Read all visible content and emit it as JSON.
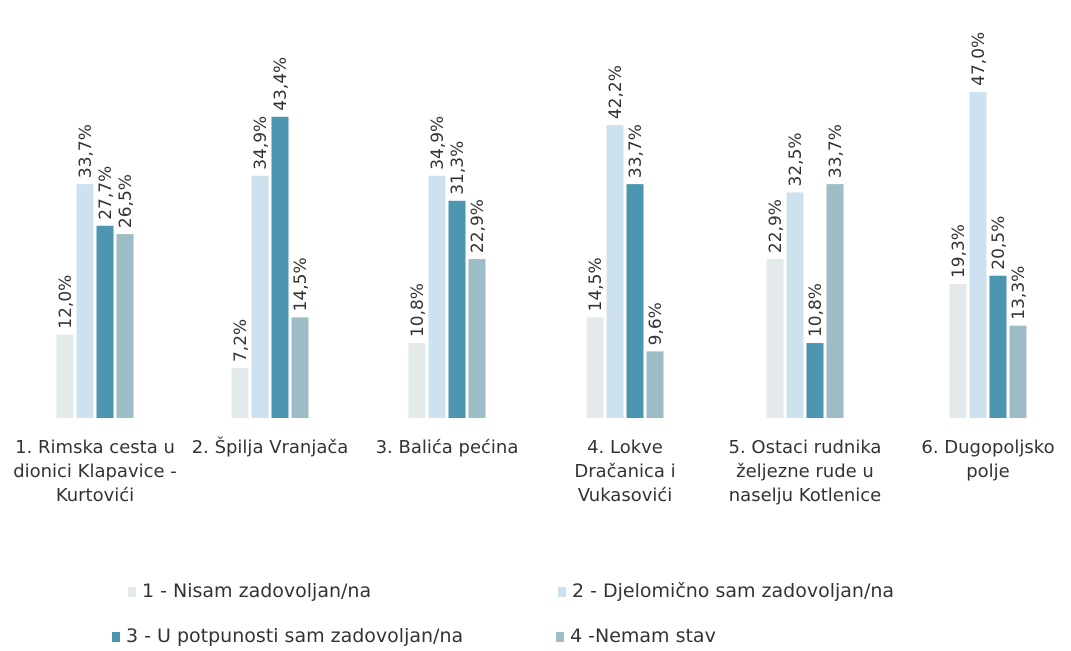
{
  "chart_data": {
    "type": "bar",
    "categories": [
      "1. Rimska cesta u dionici Klapavice - Kurtovići",
      "2. Špilja Vranjača",
      "3. Balića pećina",
      "4. Lokve Dračanica i Vukasovići",
      "5. Ostaci rudnika željezne rude u naselju Kotlenice",
      "6. Dugopoljsko polje"
    ],
    "series": [
      {
        "name": "1 - Nisam zadovoljan/na",
        "color": "#e4e9ec",
        "values": [
          12.0,
          7.2,
          10.8,
          14.5,
          22.9,
          19.3
        ],
        "value_labels": [
          "12,0%",
          "7,2%",
          "10,8%",
          "14,5%",
          "22,9%",
          "19,3%"
        ]
      },
      {
        "name": "2 - Djelomično sam zadovoljan/na",
        "color": "#cde1ee",
        "values": [
          33.7,
          34.9,
          34.9,
          42.2,
          32.5,
          47.0
        ],
        "value_labels": [
          "33,7%",
          "34,9%",
          "34,9%",
          "42,2%",
          "32,5%",
          "47,0%"
        ]
      },
      {
        "name": "3 - U potpunosti sam zadovoljan/na",
        "color": "#4d96b2",
        "values": [
          27.7,
          43.4,
          31.3,
          33.7,
          10.8,
          20.5
        ],
        "value_labels": [
          "27,7%",
          "43,4%",
          "31,3%",
          "33,7%",
          "10,8%",
          "20,5%"
        ]
      },
      {
        "name": "4 -Nemam stav",
        "color": "#9dbcc6",
        "values": [
          26.5,
          14.5,
          22.9,
          9.6,
          33.7,
          13.3
        ],
        "value_labels": [
          "26,5%",
          "14,5%",
          "22,9%",
          "9,6%",
          "33,7%",
          "13,3%"
        ]
      }
    ]
  }
}
